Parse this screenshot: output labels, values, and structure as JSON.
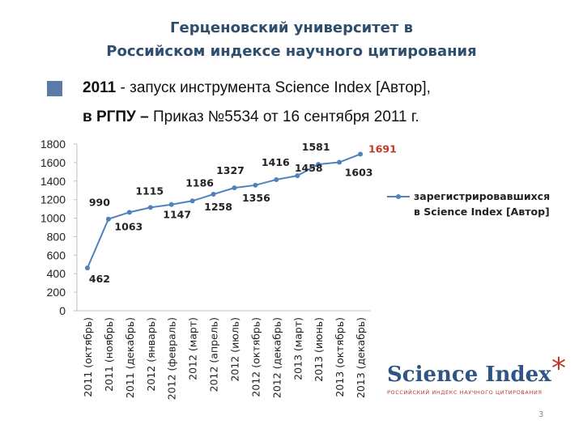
{
  "slide": {
    "title_line1": "Герценовский университет в",
    "title_line2": "Российском индексе научного цитирования",
    "bullet_bold1": "2011",
    "bullet_text1": " - запуск инструмента Science Index [Автор],",
    "bullet_bold2": "в РГПУ –",
    "bullet_text2": "  Приказ №5534 от 16 сентября 2011 г.",
    "page_number": "3"
  },
  "logo": {
    "text": "Science Index",
    "star": "*",
    "subtitle": "РОССИЙСКИЙ ИНДЕКС НАУЧНОГО ЦИТИРОВАНИЯ"
  },
  "colors": {
    "title": "#2f4d6d",
    "line": "#4f81bd",
    "highlight": "#c0392b",
    "bullet": "#5a7ba8"
  },
  "chart_data": {
    "type": "line",
    "categories": [
      "2011 (октябрь)",
      "2011 (ноябрь)",
      "2011 (декабрь)",
      "2012 (январь)",
      "2012 (февраль)",
      "2012 (март)",
      "2012 (апрель)",
      "2012 (июль)",
      "2012 (октябрь)",
      "2012 (декабрь)",
      "2013 (март)",
      "2013 (июнь)",
      "2013 (октябрь)",
      "2013 (декабрь)"
    ],
    "series": [
      {
        "name": "зарегистрировавшихся в Science Index [Автор]",
        "values": [
          462,
          990,
          1063,
          1115,
          1147,
          1186,
          1258,
          1327,
          1356,
          1416,
          1458,
          1581,
          1603,
          1691
        ]
      }
    ],
    "labels": [
      "462",
      "990",
      "1063",
      "1115",
      "1147",
      "1186",
      "1258",
      "1327",
      "1356",
      "1416",
      "1458",
      "1581",
      "1603",
      "1691"
    ],
    "highlighted_label": "1691",
    "legend_line1": "зарегистрировавшихся",
    "legend_line2": "в Science Index [Автор]",
    "legend_position": "right",
    "ylim": [
      0,
      1800
    ],
    "yticks": [
      "0",
      "200",
      "400",
      "600",
      "800",
      "1000",
      "1200",
      "1400",
      "1600",
      "1800"
    ],
    "grid": false
  }
}
